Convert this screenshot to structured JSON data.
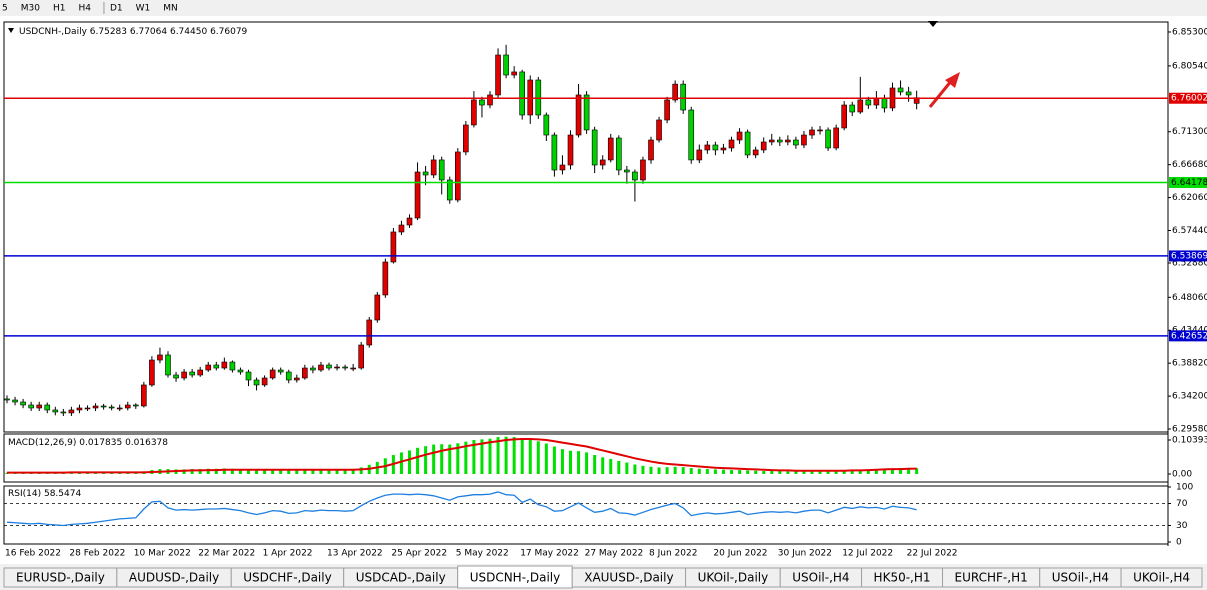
{
  "toolbar": {
    "timeframes": [
      "5",
      "M30",
      "H1",
      "H4",
      "D1",
      "W1",
      "MN"
    ]
  },
  "chart_data": [
    {
      "type": "candlestick",
      "title": "USDCNH-,Daily",
      "header_values": [
        "6.75283",
        "6.77064",
        "6.74450",
        "6.76079"
      ],
      "categories": [
        "16 Feb 2022",
        null,
        null,
        null,
        null,
        null,
        null,
        null,
        "28 Feb 2022",
        null,
        null,
        null,
        null,
        null,
        null,
        null,
        "10 Mar 2022",
        null,
        null,
        null,
        null,
        null,
        null,
        null,
        "22 Mar 2022",
        null,
        null,
        null,
        null,
        null,
        null,
        null,
        "1 Apr 2022",
        null,
        null,
        null,
        null,
        null,
        null,
        null,
        "13 Apr 2022",
        null,
        null,
        null,
        null,
        null,
        null,
        null,
        "25 Apr 2022",
        null,
        null,
        null,
        null,
        null,
        null,
        null,
        "5 May 2022",
        null,
        null,
        null,
        null,
        null,
        null,
        null,
        "17 May 2022",
        null,
        null,
        null,
        null,
        null,
        null,
        null,
        "27 May 2022",
        null,
        null,
        null,
        null,
        null,
        null,
        null,
        "8 Jun 2022",
        null,
        null,
        null,
        null,
        null,
        null,
        null,
        "20 Jun 2022",
        null,
        null,
        null,
        null,
        null,
        null,
        null,
        "30 Jun 2022",
        null,
        null,
        null,
        null,
        null,
        null,
        null,
        "12 Jul 2022",
        null,
        null,
        null,
        null,
        null,
        null,
        null,
        "22 Jul 2022",
        null
      ],
      "open": [
        6.338,
        6.3365,
        6.3337,
        6.3295,
        6.3253,
        6.3295,
        6.3225,
        6.3197,
        6.3183,
        6.3225,
        6.3253,
        6.3253,
        6.3281,
        6.3267,
        6.3253,
        6.3253,
        6.3295,
        6.3281,
        6.3576,
        6.3926,
        6.3997,
        6.3716,
        6.3674,
        6.3758,
        6.3716,
        6.3786,
        6.3856,
        6.3814,
        6.3898,
        6.3786,
        6.3758,
        6.3646,
        6.3576,
        6.3674,
        6.3786,
        6.3758,
        6.3646,
        6.3674,
        6.3814,
        6.3786,
        6.3856,
        6.3814,
        6.3828,
        6.3814,
        6.3814,
        6.4137,
        6.4488,
        6.4839,
        6.5302,
        6.5723,
        6.5821,
        6.5919,
        6.6565,
        6.6523,
        6.6734,
        6.6453,
        6.6172,
        6.6846,
        6.7225,
        6.7576,
        6.7505,
        6.7646,
        6.8207,
        6.7926,
        6.7969,
        6.7365,
        6.7856,
        6.7365,
        6.7084,
        6.6593,
        6.6663,
        6.7084,
        6.7646,
        6.7155,
        6.6663,
        6.6734,
        6.7042,
        6.6593,
        6.6565,
        6.6453,
        6.6734,
        6.7014,
        6.7295,
        6.7576,
        6.7798,
        6.7435,
        6.6734,
        6.6874,
        6.6944,
        6.6874,
        6.6902,
        6.7014,
        6.7126,
        6.6804,
        6.6874,
        6.6986,
        6.7014,
        6.6986,
        6.7014,
        6.6944,
        6.7084,
        6.7155,
        6.7155,
        6.6902,
        6.7183,
        6.7505,
        6.7407,
        6.7576,
        6.7505,
        6.7604,
        6.7463,
        6.7744,
        6.7688,
        6.75283
      ],
      "high": [
        6.343,
        6.341,
        6.338,
        6.334,
        6.334,
        6.333,
        6.327,
        6.324,
        6.327,
        6.33,
        6.329,
        6.332,
        6.331,
        6.33,
        6.33,
        6.334,
        6.332,
        6.362,
        6.398,
        6.41,
        6.405,
        6.376,
        6.38,
        6.38,
        6.383,
        6.39,
        6.39,
        6.396,
        6.392,
        6.382,
        6.379,
        6.368,
        6.371,
        6.382,
        6.382,
        6.379,
        6.372,
        6.386,
        6.385,
        6.39,
        6.389,
        6.387,
        6.386,
        6.387,
        6.418,
        6.453,
        6.488,
        6.535,
        6.578,
        6.588,
        6.597,
        6.67,
        6.665,
        6.68,
        6.678,
        6.65,
        6.69,
        6.728,
        6.77,
        6.762,
        6.77,
        6.83,
        6.835,
        6.805,
        6.8,
        6.792,
        6.79,
        6.74,
        6.712,
        6.68,
        6.715,
        6.78,
        6.77,
        6.72,
        6.68,
        6.71,
        6.708,
        6.665,
        6.66,
        6.678,
        6.706,
        6.734,
        6.762,
        6.785,
        6.785,
        6.748,
        6.695,
        6.7,
        6.699,
        6.696,
        6.706,
        6.718,
        6.716,
        6.692,
        6.705,
        6.71,
        6.706,
        6.708,
        6.706,
        6.714,
        6.72,
        6.721,
        6.719,
        6.723,
        6.756,
        6.755,
        6.79,
        6.762,
        6.77,
        6.765,
        6.782,
        6.785,
        6.776,
        6.77064
      ],
      "low": [
        6.332,
        6.329,
        6.325,
        6.321,
        6.321,
        6.318,
        6.315,
        6.314,
        6.314,
        6.318,
        6.321,
        6.321,
        6.323,
        6.322,
        6.321,
        6.322,
        6.324,
        6.326,
        6.355,
        6.388,
        6.368,
        6.362,
        6.364,
        6.368,
        6.369,
        6.376,
        6.378,
        6.379,
        6.375,
        6.372,
        6.356,
        6.35,
        6.355,
        6.365,
        6.372,
        6.36,
        6.361,
        6.365,
        6.374,
        6.376,
        6.378,
        6.378,
        6.378,
        6.377,
        6.379,
        6.41,
        6.445,
        6.48,
        6.528,
        6.568,
        6.578,
        6.589,
        6.638,
        6.648,
        6.625,
        6.612,
        6.614,
        6.68,
        6.719,
        6.733,
        6.746,
        6.76,
        6.788,
        6.788,
        6.73,
        6.724,
        6.731,
        6.7,
        6.65,
        6.653,
        6.66,
        6.705,
        6.71,
        6.655,
        6.66,
        6.67,
        6.652,
        6.64,
        6.615,
        6.64,
        6.668,
        6.698,
        6.725,
        6.754,
        6.738,
        6.668,
        6.669,
        6.682,
        6.68,
        6.682,
        6.685,
        6.696,
        6.676,
        6.676,
        6.683,
        6.694,
        6.693,
        6.694,
        6.689,
        6.69,
        6.703,
        6.709,
        6.686,
        6.687,
        6.715,
        6.735,
        6.738,
        6.745,
        6.745,
        6.74,
        6.742,
        6.764,
        6.755,
        6.7445
      ],
      "close": [
        6.3365,
        6.3337,
        6.3295,
        6.3253,
        6.3295,
        6.3225,
        6.3197,
        6.3183,
        6.3225,
        6.3253,
        6.3253,
        6.3281,
        6.3267,
        6.3253,
        6.3253,
        6.3295,
        6.3281,
        6.3576,
        6.3926,
        6.3997,
        6.3716,
        6.3674,
        6.3758,
        6.3716,
        6.3786,
        6.3856,
        6.3814,
        6.3898,
        6.3786,
        6.3758,
        6.3646,
        6.3576,
        6.3674,
        6.3786,
        6.3758,
        6.3646,
        6.3674,
        6.3814,
        6.3786,
        6.3856,
        6.3814,
        6.3828,
        6.3814,
        6.3814,
        6.4137,
        6.4488,
        6.4839,
        6.5302,
        6.5723,
        6.5821,
        6.5919,
        6.6565,
        6.6523,
        6.6734,
        6.6453,
        6.6172,
        6.6846,
        6.7225,
        6.7576,
        6.7505,
        6.7646,
        6.8207,
        6.7926,
        6.7969,
        6.7365,
        6.7856,
        6.7365,
        6.7084,
        6.6593,
        6.6663,
        6.7084,
        6.7646,
        6.7155,
        6.6663,
        6.6734,
        6.7042,
        6.6593,
        6.6565,
        6.6453,
        6.6734,
        6.7014,
        6.7295,
        6.7576,
        6.7798,
        6.7435,
        6.6734,
        6.6874,
        6.6944,
        6.6874,
        6.6902,
        6.7014,
        6.7126,
        6.6804,
        6.6874,
        6.6986,
        6.7014,
        6.6986,
        6.7014,
        6.6944,
        6.7084,
        6.7155,
        6.7155,
        6.6902,
        6.7183,
        6.7505,
        6.7407,
        6.7576,
        6.7505,
        6.7604,
        6.7463,
        6.7744,
        6.7688,
        6.7646,
        6.76079
      ],
      "up_color": "#e00000",
      "down_color": "#00d000",
      "ylim": [
        6.2916,
        6.867
      ],
      "yticks": [
        {
          "value": 6.853,
          "label": "6.85300"
        },
        {
          "value": 6.8054,
          "label": "6.80540"
        },
        {
          "value": 6.713,
          "label": "6.71300"
        },
        {
          "value": 6.6668,
          "label": "6.66680"
        },
        {
          "value": 6.6206,
          "label": "6.62060"
        },
        {
          "value": 6.5744,
          "label": "6.57440"
        },
        {
          "value": 6.5288,
          "label": "6.52880"
        },
        {
          "value": 6.4806,
          "label": "6.48060"
        },
        {
          "value": 6.4344,
          "label": "6.43440"
        },
        {
          "value": 6.3882,
          "label": "6.38820"
        },
        {
          "value": 6.342,
          "label": "6.34200"
        },
        {
          "value": 6.2958,
          "label": "6.29580"
        }
      ],
      "hlines": [
        {
          "value": 6.76002,
          "color": "#e00000"
        },
        {
          "value": 6.64178,
          "color": "#00dd00"
        },
        {
          "value": 6.53869,
          "color": "#0000d0"
        },
        {
          "value": 6.42652,
          "color": "#0000d0"
        }
      ]
    },
    {
      "type": "macd",
      "title": "MACD(12,26,9)",
      "histogram": {
        "color": "#00e000",
        "values": [
          0.004,
          0.004,
          0.005,
          0.005,
          0.005,
          0.006,
          0.006,
          0.006,
          0.006,
          0.006,
          0.006,
          0.006,
          0.006,
          0.006,
          0.006,
          0.006,
          0.006,
          0.008,
          0.012,
          0.015,
          0.015,
          0.014,
          0.014,
          0.015,
          0.015,
          0.016,
          0.016,
          0.017,
          0.016,
          0.015,
          0.013,
          0.012,
          0.012,
          0.013,
          0.013,
          0.012,
          0.012,
          0.013,
          0.013,
          0.014,
          0.014,
          0.014,
          0.014,
          0.014,
          0.02,
          0.028,
          0.037,
          0.048,
          0.058,
          0.066,
          0.072,
          0.08,
          0.085,
          0.09,
          0.091,
          0.09,
          0.094,
          0.099,
          0.104,
          0.106,
          0.108,
          0.113,
          0.114,
          0.113,
          0.108,
          0.106,
          0.1,
          0.093,
          0.084,
          0.076,
          0.071,
          0.07,
          0.066,
          0.058,
          0.051,
          0.046,
          0.04,
          0.035,
          0.029,
          0.025,
          0.022,
          0.02,
          0.021,
          0.022,
          0.021,
          0.018,
          0.016,
          0.015,
          0.014,
          0.013,
          0.012,
          0.012,
          0.011,
          0.01,
          0.009,
          0.009,
          0.009,
          0.008,
          0.008,
          0.008,
          0.008,
          0.008,
          0.008,
          0.008,
          0.009,
          0.011,
          0.012,
          0.014,
          0.015,
          0.016,
          0.016,
          0.018,
          0.018,
          0.017835
        ]
      },
      "signal": {
        "color": "#e00000",
        "values": [
          0.004,
          0.004,
          0.004,
          0.004,
          0.004,
          0.004,
          0.004,
          0.004,
          0.005,
          0.005,
          0.005,
          0.005,
          0.005,
          0.005,
          0.005,
          0.005,
          0.005,
          0.005,
          0.006,
          0.007,
          0.008,
          0.009,
          0.01,
          0.011,
          0.011,
          0.012,
          0.012,
          0.013,
          0.013,
          0.013,
          0.013,
          0.013,
          0.013,
          0.013,
          0.013,
          0.013,
          0.013,
          0.013,
          0.013,
          0.013,
          0.013,
          0.013,
          0.013,
          0.013,
          0.014,
          0.016,
          0.02,
          0.024,
          0.031,
          0.038,
          0.045,
          0.052,
          0.059,
          0.065,
          0.071,
          0.076,
          0.08,
          0.085,
          0.089,
          0.093,
          0.097,
          0.1,
          0.104,
          0.106,
          0.107,
          0.107,
          0.106,
          0.104,
          0.1,
          0.096,
          0.092,
          0.088,
          0.084,
          0.078,
          0.072,
          0.066,
          0.06,
          0.054,
          0.048,
          0.043,
          0.038,
          0.034,
          0.031,
          0.029,
          0.027,
          0.025,
          0.023,
          0.021,
          0.019,
          0.018,
          0.017,
          0.016,
          0.015,
          0.014,
          0.013,
          0.012,
          0.011,
          0.011,
          0.01,
          0.01,
          0.01,
          0.01,
          0.01,
          0.01,
          0.01,
          0.011,
          0.011,
          0.012,
          0.013,
          0.014,
          0.015,
          0.015,
          0.016,
          0.016378
        ]
      },
      "ylim": [
        -0.0245,
        0.1223
      ],
      "yticks": [
        0.103934,
        {
          "value": 0,
          "label": "0.00"
        }
      ]
    },
    {
      "type": "line",
      "title": "RSI(14)",
      "color": "#1e7fe0",
      "values": [
        36,
        35,
        34,
        33,
        34,
        32,
        31,
        30,
        32,
        33,
        34,
        36,
        38,
        40,
        42,
        43,
        44,
        60,
        73,
        74,
        62,
        58,
        59,
        58,
        59,
        60,
        60,
        61,
        59,
        57,
        53,
        50,
        53,
        57,
        56,
        52,
        53,
        57,
        56,
        58,
        57,
        57,
        56,
        57,
        66,
        74,
        80,
        85,
        87,
        87,
        86,
        87,
        86,
        84,
        80,
        76,
        82,
        84,
        86,
        86,
        87,
        91,
        86,
        85,
        72,
        78,
        68,
        64,
        56,
        57,
        64,
        71,
        62,
        54,
        56,
        61,
        53,
        52,
        49,
        54,
        59,
        63,
        67,
        70,
        62,
        48,
        51,
        53,
        51,
        52,
        54,
        56,
        50,
        52,
        54,
        55,
        54,
        55,
        53,
        56,
        58,
        58,
        53,
        58,
        63,
        61,
        64,
        62,
        63,
        60,
        65,
        63,
        62,
        58.5474
      ],
      "ylim": [
        -3.6,
        101.8
      ],
      "yticks": [
        100,
        70,
        30,
        0
      ]
    }
  ],
  "tabs": {
    "items": [
      "EURUSD-,Daily",
      "AUDUSD-,Daily",
      "USDCHF-,Daily",
      "USDCAD-,Daily",
      "USDCNH-,Daily",
      "XAUUSD-,Daily",
      "UKOil-,Daily",
      "USOil-,H4",
      "HK50-,H1",
      "EURCHF-,H1",
      "USOil-,H4",
      "UKOil-,H4"
    ],
    "active": 4
  }
}
